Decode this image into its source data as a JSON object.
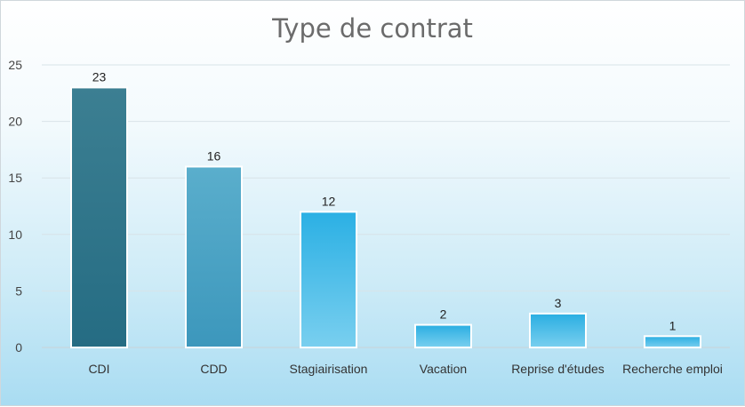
{
  "chart_data": {
    "type": "bar",
    "title": "Type de contrat",
    "categories": [
      "CDI",
      "CDD",
      "Stagiairisation",
      "Vacation",
      "Reprise d'études",
      "Recherche emploi"
    ],
    "values": [
      23,
      16,
      12,
      2,
      3,
      1
    ],
    "ylim": [
      0,
      25
    ],
    "yticks": [
      0,
      5,
      10,
      15,
      20,
      25
    ],
    "xlabel": "",
    "ylabel": "",
    "grid": true,
    "data_labels": true,
    "colors": {
      "bar_fills": [
        [
          "#3c7f92",
          "#256c83"
        ],
        [
          "#5aaecc",
          "#3c97bc"
        ],
        [
          "#2bb0e4",
          "#79cfef"
        ],
        [
          "#2aaee2",
          "#79cfef"
        ],
        [
          "#2aaee2",
          "#79cfef"
        ],
        [
          "#2aaee2",
          "#79cfef"
        ]
      ],
      "bar_stroke": "#ffffff",
      "gridline": "#d8e3e8"
    }
  }
}
